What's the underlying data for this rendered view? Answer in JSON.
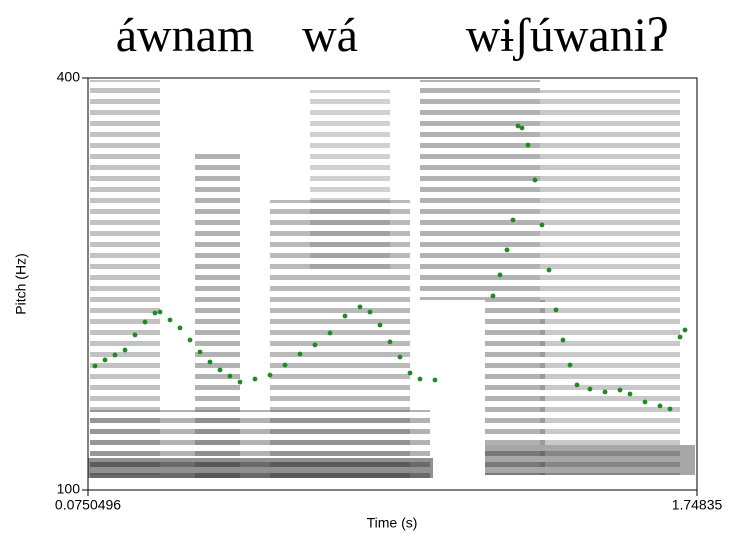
{
  "chart_data": {
    "type": "scatter",
    "title_words": [
      "áwnam",
      "wá",
      "wɨʃúwaniʔ"
    ],
    "x_label": "Time (s)",
    "y_label": "Pitch (Hz)",
    "xlim": [
      0.0750496,
      1.74835
    ],
    "xticks": [
      0.0750496,
      1.74835
    ],
    "ylim": [
      100,
      400
    ],
    "yticks": [
      100,
      400
    ],
    "color": "#1f8a1f",
    "x": [
      0.0943,
      0.1218,
      0.1492,
      0.1767,
      0.2042,
      0.2317,
      0.2591,
      0.2729,
      0.3004,
      0.3278,
      0.3553,
      0.3828,
      0.4103,
      0.4377,
      0.4652,
      0.4927,
      0.5339,
      0.5751,
      0.6163,
      0.6575,
      0.6987,
      0.74,
      0.7812,
      0.8224,
      0.8499,
      0.8773,
      0.9048,
      0.9323,
      0.9598,
      0.9873,
      1.0284,
      1.1878,
      1.207,
      1.2263,
      1.2428,
      1.2565,
      1.2675,
      1.284,
      1.3032,
      1.3224,
      1.3417,
      1.3609,
      1.3801,
      1.3994,
      1.4186,
      1.4543,
      1.4956,
      1.5368,
      1.5643,
      1.6055,
      1.6467,
      1.6742,
      1.7017,
      1.7154
    ],
    "y": [
      190.3,
      194.7,
      198.3,
      201.9,
      212.9,
      222.3,
      228.9,
      229.6,
      223.8,
      218.0,
      209.2,
      200.5,
      193.2,
      187.4,
      183.0,
      178.6,
      180.8,
      183.7,
      191.0,
      199.0,
      205.6,
      214.3,
      226.7,
      233.3,
      229.6,
      220.1,
      207.8,
      196.8,
      185.2,
      180.8,
      180.1,
      241.3,
      256.6,
      274.8,
      296.6,
      365.1,
      363.6,
      351.2,
      325.7,
      293.0,
      260.2,
      231.1,
      209.2,
      191.0,
      176.5,
      173.5,
      171.4,
      172.8,
      169.9,
      164.1,
      161.2,
      159.0,
      211.4,
      216.5
    ]
  }
}
